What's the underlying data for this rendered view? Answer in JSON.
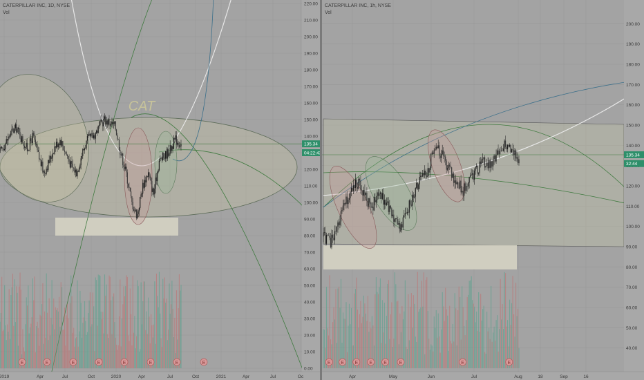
{
  "layout": {
    "columns": 2
  },
  "chart_data": [
    {
      "type": "candlestick",
      "title": "CATERPILLAR INC, 1D, NYSE",
      "volume_label": "Vol",
      "watermark": "CAT",
      "ylim": [
        0,
        220
      ],
      "y_ticks": [
        "0.00",
        "10.00",
        "20.00",
        "30.00",
        "40.00",
        "50.00",
        "60.00",
        "70.00",
        "80.00",
        "90.00",
        "100.00",
        "110.00",
        "120.00",
        "130.00",
        "140.00",
        "150.00",
        "160.00",
        "170.00",
        "180.00",
        "190.00",
        "200.00",
        "210.00",
        "220.00"
      ],
      "x_ticks": [
        "2019",
        "Apr",
        "Jul",
        "Oct",
        "2020",
        "Apr",
        "Jul",
        "Oct",
        "2021",
        "Apr",
        "Jul",
        "Oc"
      ],
      "price_labels": [
        {
          "text": "135.34",
          "value": 135.34,
          "color": "#2e8f6a"
        },
        {
          "text": "04:22:43",
          "value": 130,
          "color": "#2e8f6a"
        }
      ],
      "series": [
        {
          "name": "Price",
          "values": [
            130,
            136,
            142,
            145,
            138,
            132,
            140,
            128,
            118,
            125,
            134,
            138,
            130,
            122,
            118,
            130,
            138,
            140,
            145,
            150,
            148,
            146,
            130,
            118,
            100,
            92,
            110,
            118,
            105,
            125,
            128,
            132,
            138,
            135
          ]
        }
      ],
      "event_markers": [
        "E",
        "E",
        "E",
        "E",
        "E",
        "E",
        "E",
        "E"
      ],
      "grid": true
    },
    {
      "type": "candlestick",
      "title": "CATERPILLAR INC, 1h, NYSE",
      "volume_label": "Vol",
      "ylim": [
        30,
        210
      ],
      "y_ticks": [
        "40.00",
        "50.00",
        "60.00",
        "70.00",
        "80.00",
        "90.00",
        "100.00",
        "110.00",
        "120.00",
        "130.00",
        "140.00",
        "150.00",
        "160.00",
        "170.00",
        "180.00",
        "190.00",
        "200.00"
      ],
      "x_ticks": [
        "Apr",
        "May",
        "Jun",
        "Jul",
        "Aug",
        "18",
        "Sep",
        "16"
      ],
      "price_labels": [
        {
          "text": "135.34",
          "value": 135.34,
          "color": "#2e8f6a"
        },
        {
          "text": "32:44",
          "value": 131,
          "color": "#2e8f6a"
        }
      ],
      "series": [
        {
          "name": "Price",
          "values": [
            95,
            92,
            100,
            110,
            118,
            122,
            114,
            110,
            116,
            112,
            104,
            100,
            108,
            116,
            124,
            128,
            140,
            135,
            128,
            122,
            118,
            124,
            128,
            132,
            130,
            136,
            140,
            138,
            132
          ]
        }
      ],
      "event_markers": [
        "E",
        "E",
        "E",
        "E",
        "E",
        "E",
        "E",
        "E"
      ],
      "grid": true
    }
  ]
}
